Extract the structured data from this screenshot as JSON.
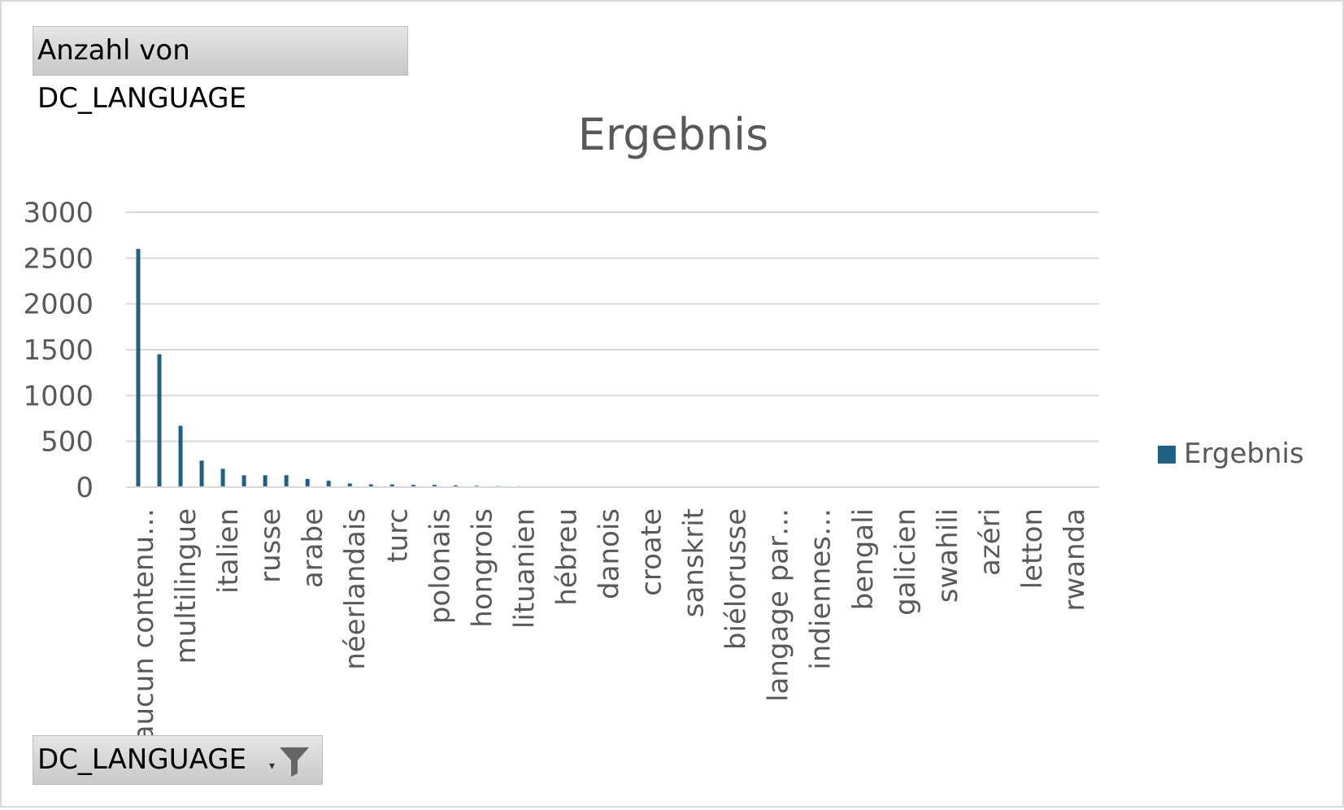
{
  "pivot": {
    "value_field_label": "Anzahl von DC_LANGUAGE",
    "axis_field_label": "DC_LANGUAGE",
    "filter_icon": "funnel-icon",
    "dropdown_icon": "dropdown-arrow-icon"
  },
  "colors": {
    "series": "#1f6184",
    "grid": "#d9d9d9",
    "text": "#595959",
    "button": "#d0d0d0"
  },
  "chart_data": {
    "type": "bar",
    "title": "Ergebnis",
    "xlabel": "",
    "ylabel": "",
    "ylim": [
      0,
      3000
    ],
    "yticks": [
      0,
      500,
      1000,
      1500,
      2000,
      2500,
      3000
    ],
    "grid": true,
    "legend": {
      "position": "right",
      "entries": [
        "Ergebnis"
      ]
    },
    "categories": [
      "aucun contenu…",
      "",
      "multilingue",
      "",
      "italien",
      "",
      "russe",
      "",
      "arabe",
      "",
      "néerlandais",
      "",
      "turc",
      "",
      "polonais",
      "",
      "hongrois",
      "",
      "lituanien",
      "",
      "hébreu",
      "",
      "danois",
      "",
      "croate",
      "",
      "sanskrit",
      "",
      "biélorusse",
      "",
      "langage par…",
      "",
      "indiennes…",
      "",
      "bengali",
      "",
      "galicien",
      "",
      "swahili",
      "",
      "azéri",
      "",
      "letton",
      "",
      "rwanda",
      ""
    ],
    "series": [
      {
        "name": "Ergebnis",
        "values": [
          2600,
          1450,
          670,
          290,
          200,
          130,
          130,
          130,
          90,
          70,
          40,
          30,
          30,
          25,
          25,
          20,
          15,
          12,
          10,
          8,
          6,
          5,
          4,
          4,
          3,
          3,
          3,
          2,
          2,
          2,
          2,
          2,
          1,
          1,
          1,
          1,
          1,
          1,
          1,
          1,
          1,
          1,
          1,
          1,
          1,
          1
        ]
      }
    ]
  }
}
